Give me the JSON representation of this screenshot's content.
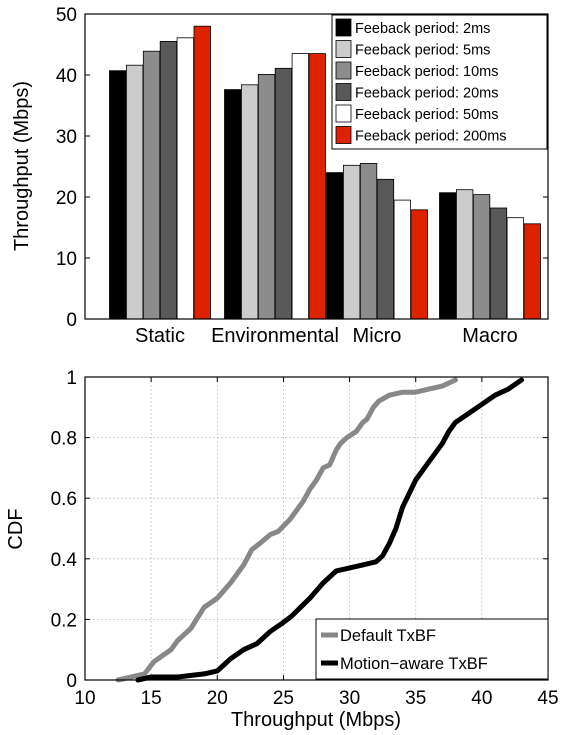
{
  "chart_data": [
    {
      "type": "bar",
      "ylabel": "Throughput (Mbps)",
      "ylim": [
        0,
        50
      ],
      "yticks": [
        0,
        10,
        20,
        30,
        40,
        50
      ],
      "categories": [
        "Static",
        "Environmental",
        "Micro",
        "Macro"
      ],
      "legend_position": "top-right",
      "series": [
        {
          "name": "Feeback period: 2ms",
          "color": "#000000",
          "values": [
            40.7,
            37.6,
            24.0,
            20.7
          ]
        },
        {
          "name": "Feeback period: 5ms",
          "color": "#cccccc",
          "values": [
            41.6,
            38.4,
            25.2,
            21.2
          ]
        },
        {
          "name": "Feeback period: 10ms",
          "color": "#8c8c8c",
          "values": [
            43.9,
            40.1,
            25.5,
            20.4
          ]
        },
        {
          "name": "Feeback period: 20ms",
          "color": "#595959",
          "values": [
            45.5,
            41.1,
            22.9,
            18.2
          ]
        },
        {
          "name": "Feeback period: 50ms",
          "color": "#ffffff",
          "values": [
            46.1,
            43.5,
            19.5,
            16.6
          ]
        },
        {
          "name": "Feeback period: 200ms",
          "color": "#dd2200",
          "values": [
            48.0,
            43.5,
            17.9,
            15.6
          ]
        }
      ]
    },
    {
      "type": "line",
      "xlabel": "Throughput (Mbps)",
      "ylabel": "CDF",
      "xlim": [
        10,
        45
      ],
      "ylim": [
        0,
        1
      ],
      "xticks": [
        10,
        15,
        20,
        25,
        30,
        35,
        40,
        45
      ],
      "yticks": [
        0,
        0.2,
        0.4,
        0.6,
        0.8,
        1
      ],
      "ytick_labels": [
        "0",
        "0.2",
        "0.4",
        "0.6",
        "0.8",
        "1"
      ],
      "grid": true,
      "legend_position": "bottom-right",
      "series": [
        {
          "name": "Default TxBF",
          "color": "#888888",
          "x": [
            12.5,
            13.5,
            14.5,
            15.2,
            16.5,
            17.0,
            18.0,
            19.0,
            20.0,
            21.0,
            22.0,
            22.6,
            23.2,
            24.0,
            24.6,
            25.5,
            26.5,
            27.0,
            27.5,
            28.0,
            28.5,
            29.0,
            29.3,
            29.8,
            30.5,
            31.0,
            31.3,
            31.8,
            32.2,
            32.6,
            33.0,
            34.0,
            35.0,
            36.0,
            37.0,
            38.0
          ],
          "y": [
            0.0,
            0.01,
            0.02,
            0.06,
            0.1,
            0.13,
            0.17,
            0.24,
            0.27,
            0.32,
            0.38,
            0.43,
            0.45,
            0.48,
            0.49,
            0.53,
            0.59,
            0.63,
            0.66,
            0.7,
            0.71,
            0.76,
            0.78,
            0.8,
            0.82,
            0.85,
            0.86,
            0.9,
            0.92,
            0.93,
            0.94,
            0.95,
            0.95,
            0.96,
            0.97,
            0.99
          ]
        },
        {
          "name": "Motion−aware TxBF",
          "color": "#000000",
          "x": [
            14.0,
            15.0,
            17.0,
            19.0,
            20.0,
            20.5,
            21.0,
            22.0,
            23.0,
            24.0,
            25.0,
            25.6,
            26.3,
            27.0,
            27.6,
            28.0,
            29.0,
            30.0,
            31.0,
            32.0,
            32.5,
            33.0,
            33.5,
            34.0,
            35.0,
            36.0,
            37.0,
            37.5,
            38.0,
            39.0,
            40.0,
            41.0,
            42.0,
            43.0
          ],
          "y": [
            0.0,
            0.01,
            0.01,
            0.02,
            0.03,
            0.05,
            0.07,
            0.1,
            0.12,
            0.16,
            0.19,
            0.21,
            0.24,
            0.27,
            0.3,
            0.32,
            0.36,
            0.37,
            0.38,
            0.39,
            0.41,
            0.45,
            0.5,
            0.57,
            0.66,
            0.72,
            0.78,
            0.82,
            0.85,
            0.88,
            0.91,
            0.94,
            0.96,
            0.99
          ]
        }
      ]
    }
  ]
}
